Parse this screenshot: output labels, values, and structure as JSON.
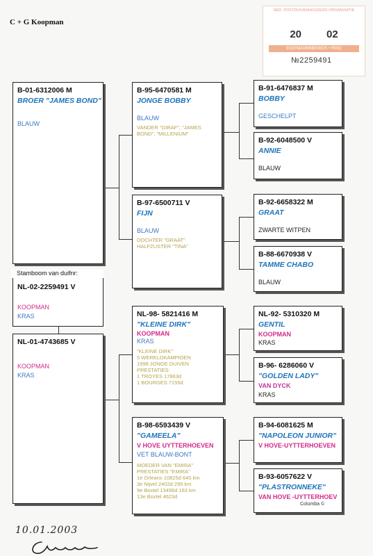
{
  "header": {
    "title": "C + G Koopman"
  },
  "stamp": {
    "top_text": "NED. POSTDUIVENHOUDERS ORGANISATIE",
    "year_left": "20",
    "year_right": "02",
    "band_text": "EIGENDOMSBEWIJS • RING",
    "number": "№2259491"
  },
  "columba": "Columba ©",
  "handwritten_date": "10.01.2003",
  "pigeons": {
    "father": {
      "ring": "B-01-6312006 M",
      "name": "BROER \"JAMES BOND\"",
      "color": "BLAUW"
    },
    "subject": {
      "label": "Stamboom van duifnr:",
      "ring": "NL-02-2259491 V",
      "breeder": "KOOPMAN",
      "color": "KRAS"
    },
    "mother": {
      "ring": "NL-01-4743685 V",
      "breeder": "KOOPMAN",
      "color": "KRAS"
    },
    "ff": {
      "ring": "B-95-6470581 M",
      "name": "JONGE BOBBY",
      "color": "BLAUW",
      "notes": [
        "VANDER \"GIRAF\", \"JAMES",
        "BOND\", \"MILLENIUM\""
      ]
    },
    "fm": {
      "ring": "B-97-6500711 V",
      "name": "FIJN",
      "color": "BLAUW",
      "notes": [
        "DOCHTER \"GRAAT\"",
        "HALFZUSTER \"TINA\""
      ]
    },
    "mf": {
      "ring": "NL-98- 5821416 M",
      "name": "\"KLEINE DIRK\"",
      "breeder": "KOOPMAN",
      "color": "KRAS",
      "notes": [
        "\"KLEINE DIRK\"",
        "5 WERELDKAMPIOEN",
        "1998 JONGE DUIVEN",
        "PRESTATIES:",
        "1  TROYES          17863d",
        "1  BOURGES          7155d"
      ]
    },
    "mm": {
      "ring": "B-98-6593439 V",
      "name": "\"GAMEELA\"",
      "breeder": "V HOVE UYTTERHOEVEN",
      "color": "VET BLAUW-BONT",
      "notes": [
        "MOEDER VAN \"EMIRA\"",
        "PRESTATIES  \"EMIRA\"",
        "1e Orleans    10825d 640 km",
        "3e Nijvel          2402d 295 km",
        "9e Boxtel        13496d 163 km",
        "13e Boxtel          4623d"
      ]
    },
    "fff": {
      "ring": "B-91-6476837 M",
      "name": "BOBBY",
      "color": "GESCHELPT"
    },
    "ffm": {
      "ring": "B-92-6048500 V",
      "name": "ANNIE",
      "color": "BLAUW"
    },
    "fmf": {
      "ring": "B-92-6658322 M",
      "name": "GRAAT",
      "color": "ZWARTE WITPEN"
    },
    "fmm": {
      "ring": "B-88-6670938 V",
      "name": "TAMME CHABO",
      "color": "BLAUW"
    },
    "mff": {
      "ring": "NL-92- 5310320 M",
      "name": "GENTIL",
      "breeder": "KOOPMAN",
      "color": "KRAS"
    },
    "mfm": {
      "ring": "B-96- 6286060 V",
      "name": "\"GOLDEN LADY\"",
      "breeder": "VAN DYCK",
      "color": "KRAS"
    },
    "mmf": {
      "ring": "B-94-6081625 M",
      "name": "\"NAPOLEON JUNIOR\"",
      "breeder": "V HOVE-UYTTERHOEVEN"
    },
    "mmm": {
      "ring": "B-93-6057622 V",
      "name": "\"PLASTRONNEKE\"",
      "breeder": "VAN HOVE -UYTTERHOEV"
    }
  }
}
